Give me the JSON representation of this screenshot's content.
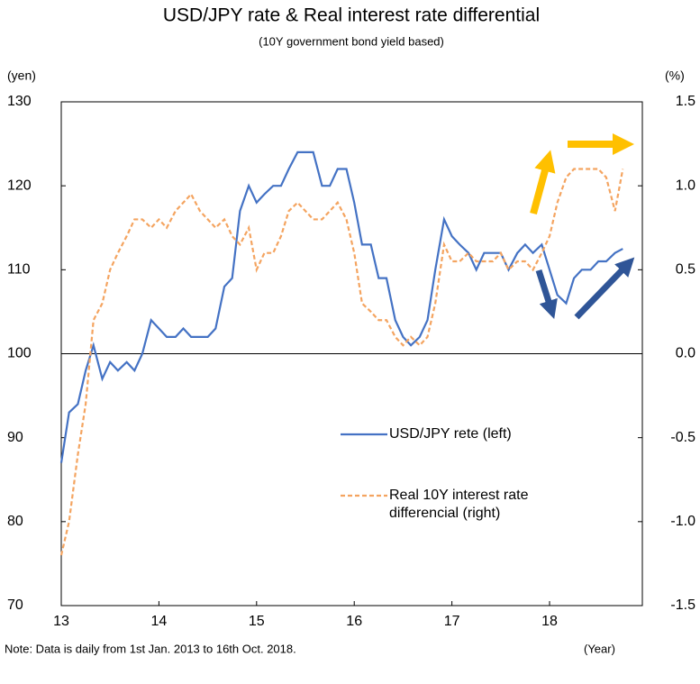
{
  "chart_data": {
    "type": "line",
    "title": "USD/JPY rate & Real interest rate differential",
    "subtitle": "(10Y government bond yield based)",
    "y_label": "(yen)",
    "y2_label": "(%)",
    "x_label": "(Year)",
    "note": "Note: Data is daily from 1st Jan. 2013 to 16th Oct. 2018.",
    "x": [
      13.0,
      13.08,
      13.17,
      13.25,
      13.33,
      13.42,
      13.5,
      13.58,
      13.67,
      13.75,
      13.83,
      13.92,
      14.0,
      14.08,
      14.17,
      14.25,
      14.33,
      14.42,
      14.5,
      14.58,
      14.67,
      14.75,
      14.83,
      14.92,
      15.0,
      15.08,
      15.17,
      15.25,
      15.33,
      15.42,
      15.5,
      15.58,
      15.67,
      15.75,
      15.83,
      15.92,
      16.0,
      16.08,
      16.17,
      16.25,
      16.33,
      16.42,
      16.5,
      16.58,
      16.67,
      16.75,
      16.83,
      16.92,
      17.0,
      17.08,
      17.17,
      17.25,
      17.33,
      17.42,
      17.5,
      17.58,
      17.67,
      17.75,
      17.83,
      17.92,
      18.0,
      18.08,
      18.17,
      18.25,
      18.33,
      18.42,
      18.5,
      18.58,
      18.67,
      18.75
    ],
    "series": [
      {
        "name": "USD/JPY rete (left)",
        "color": "#4472c4",
        "dashed": false,
        "values": [
          87,
          93,
          94,
          98,
          101,
          97,
          99,
          98,
          99,
          98,
          100,
          104,
          103,
          102,
          102,
          103,
          102,
          102,
          102,
          103,
          108,
          109,
          117,
          120,
          118,
          119,
          120,
          120,
          122,
          124,
          124,
          124,
          120,
          120,
          122,
          122,
          118,
          113,
          113,
          109,
          109,
          104,
          102,
          101,
          102,
          104,
          110,
          116,
          114,
          113,
          112,
          110,
          112,
          112,
          112,
          110,
          112,
          113,
          112,
          113,
          110,
          107,
          106,
          109,
          110,
          110,
          111,
          111,
          112,
          112.5
        ]
      },
      {
        "name": "Real 10Y interest rate differencial (right)",
        "color": "#f4a460",
        "dashed": true,
        "axis": "y2",
        "values": [
          -1.2,
          -1.0,
          -0.6,
          -0.3,
          0.2,
          0.3,
          0.5,
          0.6,
          0.7,
          0.8,
          0.8,
          0.75,
          0.8,
          0.75,
          0.85,
          0.9,
          0.95,
          0.85,
          0.8,
          0.75,
          0.8,
          0.7,
          0.65,
          0.75,
          0.5,
          0.6,
          0.6,
          0.7,
          0.85,
          0.9,
          0.85,
          0.8,
          0.8,
          0.85,
          0.9,
          0.8,
          0.6,
          0.3,
          0.25,
          0.2,
          0.2,
          0.1,
          0.05,
          0.1,
          0.05,
          0.1,
          0.3,
          0.65,
          0.55,
          0.55,
          0.6,
          0.55,
          0.55,
          0.55,
          0.6,
          0.5,
          0.55,
          0.55,
          0.5,
          0.6,
          0.7,
          0.9,
          1.05,
          1.1,
          1.1,
          1.1,
          1.1,
          1.05,
          0.85,
          1.1
        ]
      }
    ],
    "xlim": [
      13,
      18.95
    ],
    "xticks": [
      13,
      14,
      15,
      16,
      17,
      18
    ],
    "ylim": [
      70,
      130
    ],
    "yticks": [
      70,
      80,
      90,
      100,
      110,
      120,
      130
    ],
    "y2lim": [
      -1.5,
      1.5
    ],
    "y2ticks": [
      -1.5,
      {
        "value": -1,
        "label": "-1.0"
      },
      -0.5,
      {
        "value": 0,
        "label": "0.0"
      },
      0.5,
      {
        "value": 1,
        "label": "1.0"
      },
      1.5
    ],
    "reference_line": 100,
    "legend": "inside"
  }
}
